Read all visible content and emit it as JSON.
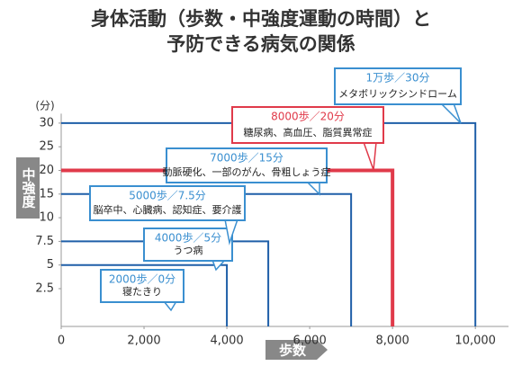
{
  "chart_data": {
    "type": "step",
    "title": [
      "身体活動（歩数・中強度運動の時間）と",
      "予防できる病気の関係"
    ],
    "ylabel": "中強度",
    "yunit": "(分)",
    "xlabel": "歩数",
    "xlim": [
      0,
      10800
    ],
    "xticks": [
      0,
      {
        "value": 2000,
        "label": "2,000"
      },
      {
        "value": 4000,
        "label": "4,000"
      },
      {
        "value": 6000,
        "label": "6,000"
      },
      {
        "value": 8000,
        "label": "8,000"
      },
      {
        "value": 10000,
        "label": "10,000"
      }
    ],
    "yticks": [
      2.5,
      5,
      7.5,
      10,
      15,
      20,
      25,
      30
    ],
    "ylim": [
      0,
      32
    ],
    "x": [
      4000,
      5000,
      7000,
      8000,
      10000
    ],
    "values": [
      5,
      7.5,
      15,
      20,
      30
    ],
    "colors": [
      "#1f5fa8",
      "#1f5fa8",
      "#1f5fa8",
      "#e03a4a",
      "#1f5fa8"
    ],
    "callouts": [
      {
        "title": "2000歩／0分",
        "text": "寝たきり",
        "color": "#3a8fd0"
      },
      {
        "title": "4000歩／5分",
        "text": "うつ病",
        "color": "#3a8fd0"
      },
      {
        "title": "5000歩／7.5分",
        "text": "脳卒中、心臓病、認知症、要介護",
        "color": "#3a8fd0"
      },
      {
        "title": "7000歩／15分",
        "text": "動脈硬化、一部のがん、骨粗しょう症",
        "color": "#3a8fd0"
      },
      {
        "title": "8000歩／20分",
        "text": "糖尿病、高血圧、脂質異常症",
        "color": "#e03a4a"
      },
      {
        "title": "1万歩／30分",
        "text": "メタボリックシンドローム",
        "color": "#3a8fd0"
      }
    ]
  }
}
